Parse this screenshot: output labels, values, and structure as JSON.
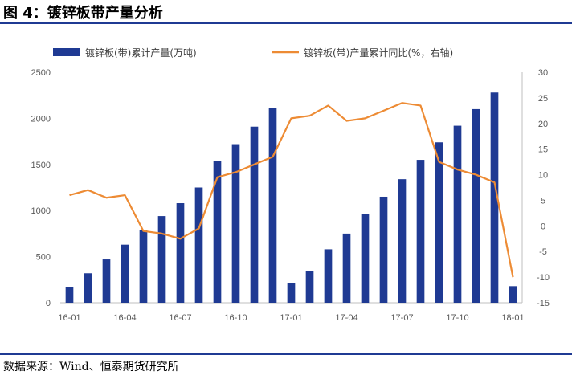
{
  "title": "图 4：镀锌板带产量分析",
  "source": "数据来源：Wind、恒泰期货研究所",
  "colors": {
    "bar": "#1f3a93",
    "line": "#ed8b34",
    "rule": "#1f3a93",
    "axis": "#bfbfbf"
  },
  "chart_data": {
    "type": "bar+line",
    "categories": [
      "16-01",
      "16-02",
      "16-03",
      "16-04",
      "16-05",
      "16-06",
      "16-07",
      "16-08",
      "16-09",
      "16-10",
      "16-11",
      "16-12",
      "17-01",
      "17-02",
      "17-03",
      "17-04",
      "17-05",
      "17-06",
      "17-07",
      "17-08",
      "17-09",
      "17-10",
      "17-11",
      "17-12",
      "18-01"
    ],
    "x_tick_labels": [
      "16-01",
      "16-04",
      "16-07",
      "16-10",
      "17-01",
      "17-04",
      "17-07",
      "17-10",
      "18-01"
    ],
    "series": [
      {
        "name": "镀锌板(带)累计产量(万吨)",
        "type": "bar",
        "axis": "left",
        "values": [
          170,
          320,
          470,
          630,
          790,
          940,
          1080,
          1250,
          1540,
          1720,
          1910,
          2110,
          210,
          340,
          580,
          750,
          960,
          1150,
          1340,
          1550,
          1740,
          1920,
          2100,
          2280,
          180
        ]
      },
      {
        "name": "镀锌板(带)产量累计同比(%，右轴)",
        "type": "line",
        "axis": "right",
        "values": [
          6,
          7,
          5.5,
          6,
          -1,
          -1.5,
          -2.5,
          -0.5,
          9.5,
          10.5,
          12,
          13.5,
          21,
          21.5,
          23.5,
          20.5,
          21,
          22.5,
          24,
          23.5,
          12.5,
          11,
          10,
          8.5,
          -10
        ]
      }
    ],
    "y_left": {
      "min": 0,
      "max": 2500,
      "ticks": [
        0,
        500,
        1000,
        1500,
        2000,
        2500
      ]
    },
    "y_right": {
      "min": -15,
      "max": 30,
      "ticks": [
        -15,
        -10,
        -5,
        0,
        5,
        10,
        15,
        20,
        25,
        30
      ]
    },
    "legend_position": "top",
    "grid": false
  }
}
